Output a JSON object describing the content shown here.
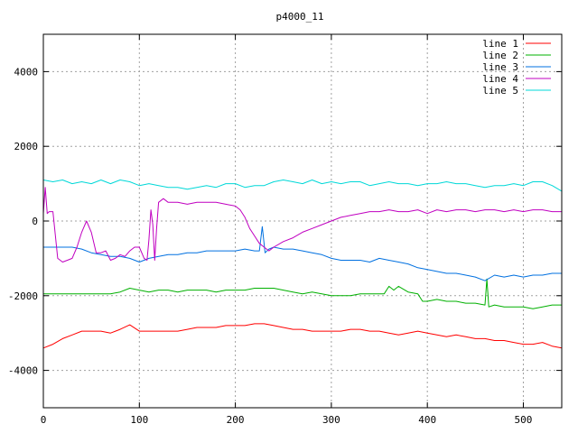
{
  "chart_data": {
    "type": "line",
    "title": "p4000_11",
    "xlabel": "",
    "ylabel": "",
    "xlim": [
      0,
      540
    ],
    "ylim": [
      -5000,
      5000
    ],
    "xticks": [
      0,
      100,
      200,
      300,
      400,
      500
    ],
    "xtick_labels": [
      "0",
      "100",
      "200",
      "300",
      "400",
      "500"
    ],
    "yticks": [
      -4000,
      -2000,
      0,
      2000,
      4000
    ],
    "ytick_labels": [
      "-4000",
      "-2000",
      "0",
      "2000",
      "4000"
    ],
    "grid": true,
    "legend_position": "top-right",
    "series": [
      {
        "name": "line 1",
        "color": "#ff0000",
        "x": [
          0,
          10,
          20,
          30,
          40,
          50,
          60,
          70,
          80,
          90,
          100,
          110,
          120,
          130,
          140,
          150,
          160,
          170,
          180,
          190,
          200,
          210,
          220,
          230,
          240,
          250,
          260,
          270,
          280,
          290,
          300,
          310,
          320,
          330,
          340,
          350,
          360,
          370,
          380,
          390,
          400,
          410,
          420,
          430,
          440,
          450,
          460,
          470,
          480,
          490,
          500,
          510,
          520,
          530,
          540
        ],
        "y": [
          -3400,
          -3300,
          -3150,
          -3050,
          -2950,
          -2950,
          -2950,
          -3000,
          -2900,
          -2780,
          -2950,
          -2950,
          -2950,
          -2950,
          -2950,
          -2900,
          -2850,
          -2850,
          -2850,
          -2800,
          -2800,
          -2800,
          -2750,
          -2750,
          -2800,
          -2850,
          -2900,
          -2900,
          -2950,
          -2950,
          -2950,
          -2950,
          -2900,
          -2900,
          -2950,
          -2950,
          -3000,
          -3050,
          -3000,
          -2950,
          -3000,
          -3050,
          -3100,
          -3050,
          -3100,
          -3150,
          -3150,
          -3200,
          -3200,
          -3250,
          -3300,
          -3300,
          -3250,
          -3350,
          -3400
        ]
      },
      {
        "name": "line 2",
        "color": "#00b000",
        "x": [
          0,
          10,
          20,
          30,
          40,
          50,
          60,
          70,
          80,
          90,
          100,
          110,
          120,
          130,
          140,
          150,
          160,
          170,
          180,
          190,
          200,
          210,
          220,
          230,
          240,
          250,
          260,
          270,
          280,
          290,
          300,
          310,
          320,
          330,
          340,
          350,
          355,
          360,
          365,
          370,
          380,
          390,
          395,
          400,
          410,
          420,
          430,
          440,
          450,
          460,
          462,
          464,
          470,
          480,
          490,
          500,
          510,
          520,
          530,
          540
        ],
        "y": [
          -1950,
          -1950,
          -1950,
          -1950,
          -1950,
          -1950,
          -1950,
          -1950,
          -1900,
          -1800,
          -1850,
          -1900,
          -1850,
          -1850,
          -1900,
          -1850,
          -1850,
          -1850,
          -1900,
          -1850,
          -1850,
          -1850,
          -1800,
          -1800,
          -1800,
          -1850,
          -1900,
          -1950,
          -1900,
          -1950,
          -2000,
          -2000,
          -2000,
          -1950,
          -1950,
          -1950,
          -1950,
          -1750,
          -1850,
          -1750,
          -1900,
          -1950,
          -2150,
          -2150,
          -2100,
          -2150,
          -2150,
          -2200,
          -2200,
          -2250,
          -1550,
          -2300,
          -2250,
          -2300,
          -2300,
          -2300,
          -2350,
          -2300,
          -2250,
          -2250
        ]
      },
      {
        "name": "line 3",
        "color": "#0070e0",
        "x": [
          0,
          10,
          20,
          30,
          40,
          50,
          60,
          70,
          80,
          90,
          100,
          110,
          120,
          130,
          140,
          150,
          160,
          170,
          180,
          190,
          200,
          210,
          220,
          225,
          228,
          231,
          235,
          240,
          250,
          260,
          270,
          280,
          290,
          300,
          310,
          320,
          330,
          340,
          350,
          360,
          370,
          380,
          390,
          400,
          410,
          420,
          430,
          440,
          450,
          460,
          470,
          480,
          490,
          500,
          510,
          520,
          530,
          540
        ],
        "y": [
          -700,
          -700,
          -700,
          -700,
          -750,
          -850,
          -900,
          -950,
          -950,
          -1000,
          -1100,
          -1000,
          -950,
          -900,
          -900,
          -850,
          -850,
          -800,
          -800,
          -800,
          -800,
          -750,
          -800,
          -800,
          -150,
          -850,
          -750,
          -700,
          -750,
          -750,
          -800,
          -850,
          -900,
          -1000,
          -1050,
          -1050,
          -1050,
          -1100,
          -1000,
          -1050,
          -1100,
          -1150,
          -1250,
          -1300,
          -1350,
          -1400,
          -1400,
          -1450,
          -1500,
          -1600,
          -1450,
          -1500,
          -1450,
          -1500,
          -1450,
          -1450,
          -1400,
          -1400
        ]
      },
      {
        "name": "line 4",
        "color": "#c000c0",
        "x": [
          0,
          2,
          4,
          6,
          10,
          15,
          20,
          25,
          30,
          35,
          40,
          45,
          50,
          55,
          60,
          65,
          70,
          75,
          80,
          85,
          90,
          95,
          100,
          105,
          108,
          110,
          112,
          114,
          116,
          118,
          120,
          125,
          130,
          140,
          150,
          160,
          170,
          180,
          190,
          200,
          205,
          210,
          215,
          220,
          225,
          230,
          235,
          240,
          250,
          260,
          270,
          280,
          290,
          300,
          310,
          320,
          330,
          340,
          350,
          360,
          370,
          380,
          390,
          400,
          410,
          420,
          430,
          440,
          450,
          460,
          470,
          480,
          490,
          500,
          510,
          520,
          530,
          540
        ],
        "y": [
          200,
          900,
          200,
          250,
          250,
          -1000,
          -1100,
          -1050,
          -1000,
          -700,
          -300,
          0,
          -300,
          -850,
          -850,
          -800,
          -1050,
          -1000,
          -900,
          -950,
          -800,
          -700,
          -700,
          -1000,
          -1050,
          -500,
          300,
          -100,
          -1050,
          -200,
          500,
          600,
          500,
          500,
          450,
          500,
          500,
          500,
          450,
          400,
          300,
          100,
          -200,
          -400,
          -600,
          -700,
          -800,
          -700,
          -550,
          -450,
          -300,
          -200,
          -100,
          0,
          100,
          150,
          200,
          250,
          250,
          300,
          250,
          250,
          300,
          200,
          300,
          250,
          300,
          300,
          250,
          300,
          300,
          250,
          300,
          250,
          300,
          300,
          250,
          250
        ]
      },
      {
        "name": "line 5",
        "color": "#00d8d8",
        "x": [
          0,
          10,
          20,
          30,
          40,
          50,
          60,
          70,
          80,
          90,
          100,
          110,
          120,
          130,
          140,
          150,
          160,
          170,
          180,
          190,
          200,
          210,
          220,
          230,
          240,
          250,
          260,
          270,
          280,
          290,
          300,
          310,
          320,
          330,
          340,
          350,
          360,
          370,
          380,
          390,
          400,
          410,
          420,
          430,
          440,
          450,
          460,
          470,
          480,
          490,
          500,
          510,
          520,
          530,
          540
        ],
        "y": [
          1100,
          1050,
          1100,
          1000,
          1050,
          1000,
          1100,
          1000,
          1100,
          1050,
          950,
          1000,
          950,
          900,
          900,
          850,
          900,
          950,
          900,
          1000,
          1000,
          900,
          950,
          950,
          1050,
          1100,
          1050,
          1000,
          1100,
          1000,
          1050,
          1000,
          1050,
          1050,
          950,
          1000,
          1050,
          1000,
          1000,
          950,
          1000,
          1000,
          1050,
          1000,
          1000,
          950,
          900,
          950,
          950,
          1000,
          950,
          1050,
          1050,
          950,
          800
        ]
      }
    ]
  }
}
